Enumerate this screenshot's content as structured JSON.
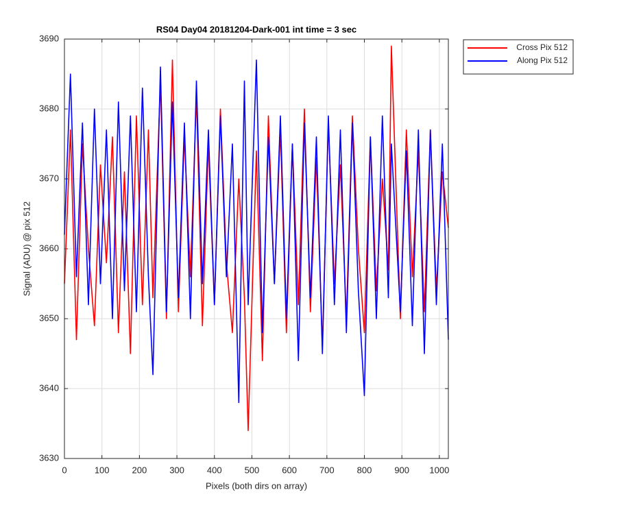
{
  "chart_data": {
    "type": "line",
    "title": "RS04 Day04 20181204-Dark-001 int time = 3 sec",
    "xlabel": "Pixels (both dirs on array)",
    "ylabel": "Signal (ADU) @ pix 512",
    "x": [
      0,
      16,
      32,
      48,
      64,
      80,
      96,
      112,
      128,
      144,
      160,
      176,
      192,
      208,
      224,
      236,
      256,
      272,
      288,
      304,
      320,
      336,
      352,
      368,
      384,
      400,
      416,
      432,
      448,
      465,
      480,
      490,
      512,
      528,
      544,
      560,
      576,
      592,
      608,
      624,
      640,
      656,
      672,
      688,
      704,
      720,
      736,
      752,
      768,
      784,
      800,
      816,
      832,
      848,
      864,
      872,
      896,
      912,
      928,
      944,
      960,
      976,
      992,
      1008,
      1024
    ],
    "series": [
      {
        "name": "Cross Pix 512",
        "color": "#ff0000",
        "values": [
          3655,
          3677,
          3647,
          3675,
          3660,
          3649,
          3672,
          3658,
          3676,
          3648,
          3671,
          3645,
          3679,
          3652,
          3677,
          3653,
          3684,
          3650,
          3687,
          3651,
          3676,
          3656,
          3682,
          3649,
          3675,
          3652,
          3680,
          3658,
          3648,
          3670,
          3653,
          3634,
          3674,
          3644,
          3679,
          3655,
          3677,
          3648,
          3675,
          3652,
          3680,
          3651,
          3673,
          3646,
          3678,
          3655,
          3672,
          3650,
          3679,
          3660,
          3648,
          3676,
          3654,
          3670,
          3657,
          3689,
          3650,
          3677,
          3656,
          3674,
          3651,
          3677,
          3654,
          3671,
          3663
        ]
      },
      {
        "name": "Along Pix 512",
        "color": "#0000ff",
        "values": [
          3662,
          3685,
          3656,
          3678,
          3652,
          3680,
          3655,
          3677,
          3650,
          3681,
          3654,
          3679,
          3651,
          3683,
          3656,
          3642,
          3686,
          3651,
          3681,
          3653,
          3678,
          3650,
          3684,
          3655,
          3677,
          3652,
          3679,
          3656,
          3675,
          3638,
          3684,
          3652,
          3687,
          3648,
          3676,
          3655,
          3679,
          3650,
          3675,
          3644,
          3678,
          3653,
          3676,
          3645,
          3679,
          3652,
          3677,
          3648,
          3678,
          3654,
          3639,
          3676,
          3650,
          3679,
          3653,
          3675,
          3651,
          3674,
          3649,
          3677,
          3645,
          3677,
          3652,
          3675,
          3647
        ]
      }
    ],
    "xlim": [
      0,
      1024
    ],
    "xticks": [
      0,
      100,
      200,
      300,
      400,
      500,
      600,
      700,
      800,
      900,
      1000
    ],
    "ylim": [
      3630,
      3690
    ],
    "yticks": [
      3630,
      3640,
      3650,
      3660,
      3670,
      3680,
      3690
    ],
    "grid": true,
    "legend": "northeastoutside"
  }
}
